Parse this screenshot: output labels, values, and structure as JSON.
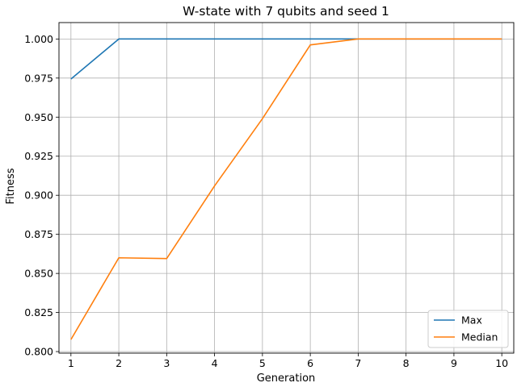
{
  "chart_data": {
    "type": "line",
    "title": "W-state with 7 qubits and seed 1",
    "xlabel": "Generation",
    "ylabel": "Fitness",
    "x": [
      1,
      2,
      3,
      4,
      5,
      6,
      7,
      8,
      9,
      10
    ],
    "xticks": [
      "1",
      "2",
      "3",
      "4",
      "5",
      "6",
      "7",
      "8",
      "9",
      "10"
    ],
    "yticks": [
      "0.800",
      "0.825",
      "0.850",
      "0.875",
      "0.900",
      "0.925",
      "0.950",
      "0.975",
      "1.000"
    ],
    "xlim": [
      0.75,
      10.25
    ],
    "ylim": [
      0.799,
      1.0105
    ],
    "grid": true,
    "legend_position": "lower-right",
    "series": [
      {
        "name": "Max",
        "color": "#1f77b4",
        "values": [
          0.9744,
          1.0,
          1.0,
          1.0,
          1.0,
          1.0,
          1.0,
          1.0,
          1.0,
          1.0
        ]
      },
      {
        "name": "Median",
        "color": "#ff7f0e",
        "values": [
          0.8077,
          0.86,
          0.8595,
          0.906,
          0.949,
          0.9962,
          1.0,
          1.0,
          1.0,
          1.0
        ]
      }
    ]
  }
}
